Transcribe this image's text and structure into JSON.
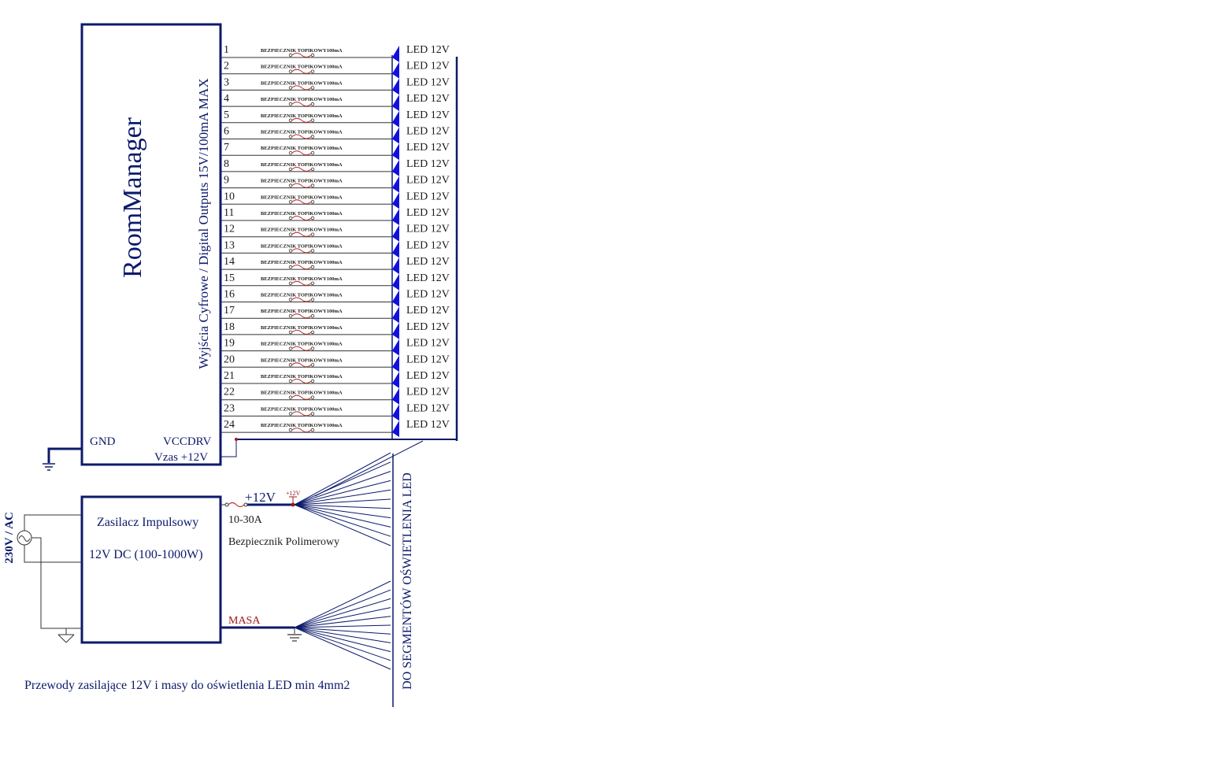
{
  "module": {
    "title": "RoomManager",
    "outputs_label": "Wyjścia Cyfrowe / Digital Outputs 15V/100mA MAX",
    "gnd_label": "GND",
    "vccdrv_label": "VCCDRV",
    "vzas_label": "Vzas +12V"
  },
  "channels": {
    "count": 24,
    "fuse_label": "BEZPIECZNIK TOPIKOWY100mA",
    "led_label": "LED 12V"
  },
  "power_supply": {
    "title": "Zasilacz Impulsowy",
    "spec": "12V DC (100-1000W)",
    "ac_label": "230V / AC",
    "plus_label": "+12V",
    "plus_small_label": "+12V",
    "fuse_rating": "10-30A",
    "fuse_label": "Bezpiecznik Polimerowy",
    "masa_label": "MASA"
  },
  "segments_label": "DO SEGMENTÓW OŚWIETLENIA LED",
  "footer_note": "Przewody zasilające  12V i masy do oświetlenia LED min 4mm2",
  "colors": {
    "primary": "#0c1a6b",
    "led_triangle": "#1010e0",
    "label_red": "#a01818",
    "fuse_red": "#c03030"
  }
}
